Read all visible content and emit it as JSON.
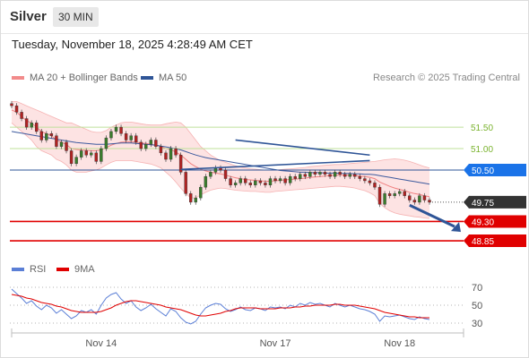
{
  "header": {
    "symbol": "Silver",
    "interval": "30 MIN"
  },
  "datetime": "Tuesday, November 18, 2025 4:28:49 AM CET",
  "legend": {
    "price": [
      {
        "label": "MA 20 + Bollinger Bands",
        "color": "#f28b8b"
      },
      {
        "label": "MA 50",
        "color": "#2f5597"
      }
    ],
    "rsi": [
      {
        "label": "RSI",
        "color": "#5b7fd6"
      },
      {
        "label": "9MA",
        "color": "#e00000"
      }
    ]
  },
  "credit": "Research © 2025 Trading Central",
  "chart_data": [
    {
      "type": "candlestick",
      "x_ticks": [
        "Nov 14",
        "Nov 17",
        "Nov 18"
      ],
      "ylim": [
        48.6,
        52.4
      ],
      "levels": [
        {
          "value": 51.5,
          "label": "51.50",
          "style": "resistance",
          "color": "#8cc63f"
        },
        {
          "value": 51.0,
          "label": "51.00",
          "style": "resistance",
          "color": "#8cc63f"
        },
        {
          "value": 50.5,
          "label": "50.50",
          "style": "pivot",
          "color": "#1a73e8"
        },
        {
          "value": 49.75,
          "label": "49.75",
          "style": "last",
          "color": "#333333"
        },
        {
          "value": 49.3,
          "label": "49.30",
          "style": "support",
          "color": "#e00000"
        },
        {
          "value": 48.85,
          "label": "48.85",
          "style": "support",
          "color": "#e00000"
        }
      ],
      "close": [
        52.0,
        51.85,
        51.7,
        51.5,
        51.6,
        51.4,
        51.2,
        51.35,
        51.3,
        51.05,
        51.15,
        50.95,
        50.65,
        50.8,
        50.95,
        50.85,
        50.9,
        50.7,
        51.0,
        51.25,
        51.4,
        51.5,
        51.35,
        51.2,
        51.3,
        51.15,
        51.0,
        51.1,
        51.2,
        51.05,
        50.9,
        50.75,
        51.0,
        50.85,
        50.45,
        49.95,
        49.75,
        49.85,
        50.1,
        50.35,
        50.45,
        50.55,
        50.5,
        50.3,
        50.15,
        50.2,
        50.3,
        50.2,
        50.15,
        50.25,
        50.2,
        50.15,
        50.3,
        50.25,
        50.3,
        50.2,
        50.35,
        50.3,
        50.4,
        50.35,
        50.45,
        50.4,
        50.45,
        50.4,
        50.35,
        50.45,
        50.4,
        50.35,
        50.4,
        50.35,
        50.3,
        50.25,
        50.2,
        50.1,
        49.7,
        49.95,
        49.9,
        49.95,
        50.0,
        49.9,
        49.8,
        49.75,
        49.9,
        49.8,
        49.75
      ],
      "ma20": [
        51.9,
        51.85,
        51.75,
        51.65,
        51.6,
        51.5,
        51.4,
        51.35,
        51.3,
        51.2,
        51.15,
        51.1,
        51.0,
        50.98,
        50.97,
        50.96,
        50.95,
        50.95,
        50.97,
        51.02,
        51.08,
        51.12,
        51.15,
        51.16,
        51.16,
        51.15,
        51.13,
        51.12,
        51.1,
        51.08,
        51.05,
        51.0,
        50.98,
        50.92,
        50.85,
        50.75,
        50.65,
        50.58,
        50.52,
        50.48,
        50.45,
        50.43,
        50.41,
        50.38,
        50.35,
        50.32,
        50.3,
        50.28,
        50.27,
        50.26,
        50.25,
        50.24,
        50.24,
        50.25,
        50.26,
        50.27,
        50.28,
        50.29,
        50.3,
        50.31,
        50.33,
        50.34,
        50.35,
        50.36,
        50.37,
        50.38,
        50.38,
        50.38,
        50.38,
        50.37,
        50.36,
        50.35,
        50.33,
        50.3,
        50.22,
        50.17,
        50.12,
        50.08,
        50.05,
        50.02,
        49.98,
        49.95,
        49.93,
        49.9,
        49.88
      ],
      "bb_upper": [
        52.1,
        52.1,
        52.05,
        52.0,
        51.95,
        51.9,
        51.85,
        51.8,
        51.75,
        51.7,
        51.65,
        51.6,
        51.6,
        51.55,
        51.5,
        51.45,
        51.4,
        51.38,
        51.38,
        51.42,
        51.5,
        51.55,
        51.6,
        51.62,
        51.62,
        51.6,
        51.58,
        51.56,
        51.55,
        51.55,
        51.55,
        51.58,
        51.6,
        51.62,
        51.6,
        51.5,
        51.35,
        51.2,
        51.05,
        50.95,
        50.85,
        50.78,
        50.72,
        50.68,
        50.64,
        50.6,
        50.57,
        50.55,
        50.53,
        50.52,
        50.51,
        50.5,
        50.5,
        50.5,
        50.51,
        50.52,
        50.53,
        50.54,
        50.55,
        50.56,
        50.58,
        50.59,
        50.6,
        50.61,
        50.62,
        50.63,
        50.63,
        50.64,
        50.65,
        50.66,
        50.67,
        50.68,
        50.69,
        50.7,
        50.72,
        50.74,
        50.75,
        50.76,
        50.75,
        50.73,
        50.7,
        50.66,
        50.62,
        50.58,
        50.55
      ],
      "bb_lower": [
        51.6,
        51.5,
        51.4,
        51.3,
        51.2,
        51.05,
        50.95,
        50.9,
        50.85,
        50.75,
        50.7,
        50.62,
        50.5,
        50.45,
        50.45,
        50.45,
        50.48,
        50.5,
        50.55,
        50.62,
        50.68,
        50.72,
        50.72,
        50.72,
        50.72,
        50.7,
        50.68,
        50.66,
        50.64,
        50.6,
        50.55,
        50.45,
        50.35,
        50.22,
        50.08,
        49.95,
        49.85,
        49.85,
        49.92,
        49.98,
        50.03,
        50.06,
        50.08,
        50.07,
        50.05,
        50.03,
        50.02,
        50.01,
        50.0,
        50.0,
        49.99,
        49.98,
        49.98,
        50.0,
        50.01,
        50.02,
        50.03,
        50.04,
        50.05,
        50.06,
        50.07,
        50.08,
        50.09,
        50.1,
        50.11,
        50.12,
        50.12,
        50.11,
        50.1,
        50.08,
        50.05,
        50.02,
        49.97,
        49.9,
        49.72,
        49.62,
        49.55,
        49.5,
        49.47,
        49.45,
        49.43,
        49.41,
        49.4,
        49.38,
        49.37
      ],
      "ma50": [
        51.4,
        51.38,
        51.36,
        51.34,
        51.32,
        51.3,
        51.28,
        51.26,
        51.24,
        51.22,
        51.2,
        51.18,
        51.16,
        51.14,
        51.13,
        51.12,
        51.11,
        51.1,
        51.1,
        51.1,
        51.11,
        51.12,
        51.13,
        51.13,
        51.13,
        51.12,
        51.11,
        51.1,
        51.09,
        51.08,
        51.06,
        51.04,
        51.02,
        51.0,
        50.97,
        50.93,
        50.89,
        50.85,
        50.82,
        50.79,
        50.77,
        50.75,
        50.73,
        50.71,
        50.69,
        50.67,
        50.65,
        50.63,
        50.61,
        50.59,
        50.57,
        50.55,
        50.53,
        50.51,
        50.49,
        50.48,
        50.47,
        50.46,
        50.45,
        50.45,
        50.44,
        50.44,
        50.44,
        50.43,
        50.43,
        50.43,
        50.42,
        50.42,
        50.42,
        50.41,
        50.41,
        50.4,
        50.4,
        50.39,
        50.37,
        50.35,
        50.33,
        50.31,
        50.29,
        50.27,
        50.25,
        50.23,
        50.21,
        50.19,
        50.17
      ]
    },
    {
      "type": "line",
      "title": "RSI",
      "y_ticks": [
        70,
        50,
        30
      ],
      "ylim": [
        20,
        78
      ],
      "rsi": [
        68,
        63,
        58,
        52,
        55,
        49,
        45,
        50,
        47,
        41,
        45,
        40,
        35,
        38,
        44,
        42,
        45,
        40,
        50,
        58,
        62,
        64,
        57,
        52,
        55,
        48,
        44,
        47,
        51,
        46,
        42,
        38,
        46,
        43,
        36,
        31,
        29,
        32,
        40,
        47,
        50,
        52,
        51,
        46,
        43,
        45,
        48,
        45,
        44,
        47,
        46,
        44,
        48,
        47,
        48,
        46,
        50,
        48,
        52,
        50,
        53,
        51,
        52,
        50,
        48,
        52,
        50,
        48,
        50,
        48,
        46,
        45,
        43,
        40,
        32,
        38,
        37,
        38,
        39,
        37,
        35,
        34,
        37,
        35,
        34
      ],
      "ma9": [
        62,
        61,
        60,
        58,
        57,
        55,
        53,
        52,
        51,
        49,
        48,
        46,
        44,
        43,
        42,
        42,
        42,
        42,
        43,
        45,
        47,
        50,
        52,
        54,
        55,
        55,
        54,
        53,
        52,
        51,
        50,
        48,
        47,
        46,
        45,
        43,
        41,
        39,
        38,
        38,
        39,
        40,
        41,
        43,
        44,
        46,
        47,
        47,
        47,
        47,
        46,
        46,
        46,
        46,
        47,
        47,
        47,
        48,
        48,
        49,
        49,
        50,
        50,
        50,
        50,
        51,
        51,
        50,
        50,
        50,
        49,
        48,
        47,
        46,
        44,
        42,
        41,
        40,
        39,
        38,
        37,
        37,
        36,
        36,
        36
      ]
    }
  ]
}
